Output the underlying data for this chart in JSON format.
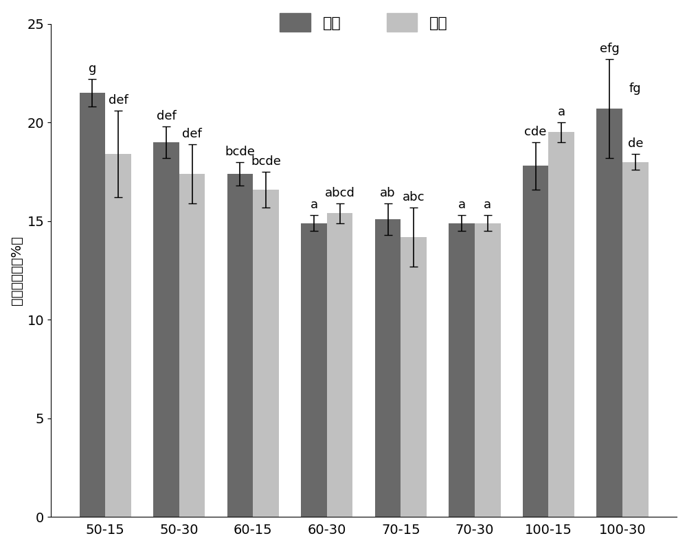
{
  "categories": [
    "50-15",
    "50-30",
    "60-15",
    "60-30",
    "70-15",
    "70-30",
    "100-15",
    "100-30"
  ],
  "vacuum_values": [
    21.5,
    19.0,
    17.4,
    14.9,
    15.1,
    14.9,
    17.8,
    20.7
  ],
  "normal_values": [
    18.4,
    17.4,
    16.6,
    15.4,
    14.2,
    14.9,
    19.5,
    18.0
  ],
  "vacuum_errors": [
    0.7,
    0.8,
    0.6,
    0.4,
    0.8,
    0.4,
    1.2,
    2.5
  ],
  "normal_errors": [
    2.2,
    1.5,
    0.9,
    0.5,
    1.5,
    0.4,
    0.5,
    0.4
  ],
  "vacuum_sig": [
    "g",
    "def",
    "bcde",
    "a",
    "ab",
    "a",
    "cde",
    "efg"
  ],
  "normal_sig": [
    "def",
    "def",
    "bcde",
    "abcd",
    "abc",
    "a",
    "a",
    "de"
  ],
  "vacuum_color": "#696969",
  "normal_color": "#c0c0c0",
  "ylabel": "蛋白溶解度（%Ｉ",
  "legend_vacuum": "真空",
  "legend_normal": "常压",
  "ylim": [
    0,
    25
  ],
  "yticks": [
    0,
    5,
    10,
    15,
    20,
    25
  ],
  "bar_width": 0.35,
  "fig_width": 10.0,
  "fig_height": 7.96,
  "background_color": "#ffffff",
  "font_size": 14,
  "label_font_size": 13
}
